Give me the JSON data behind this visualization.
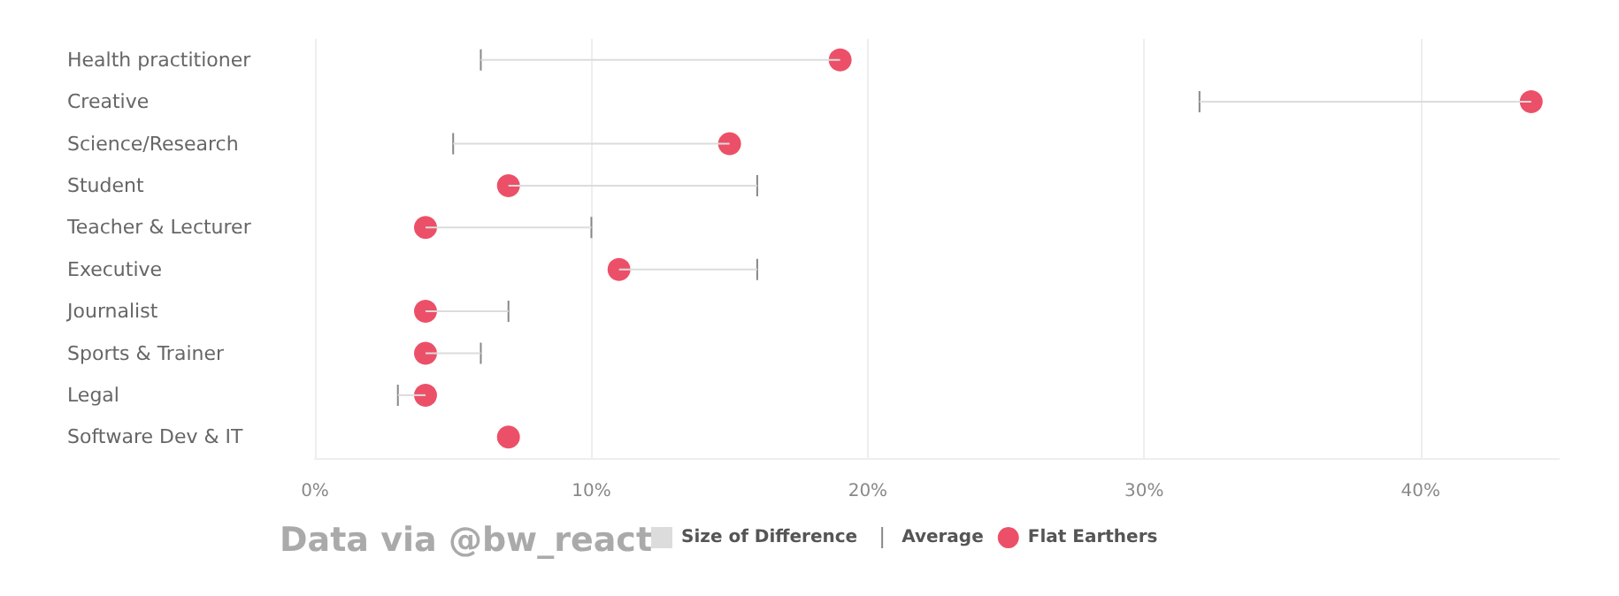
{
  "chart_data": {
    "type": "scatter",
    "orientation": "horizontal",
    "categories": [
      "Health practitioner",
      "Creative",
      "Science/Research",
      "Student",
      "Teacher & Lecturer",
      "Executive",
      "Journalist",
      "Sports & Trainer",
      "Legal",
      "Software Dev & IT"
    ],
    "series": [
      {
        "name": "Size of Difference",
        "type": "bar",
        "color": "#dcdcdc",
        "base": [
          6,
          32,
          5,
          7,
          4,
          11,
          4,
          4,
          3,
          null
        ],
        "values": [
          13,
          12,
          10,
          9,
          6,
          5,
          3,
          2,
          1,
          null
        ]
      },
      {
        "name": "Average",
        "color": "#888888",
        "values": [
          6,
          32,
          5,
          16,
          10,
          16,
          7,
          6,
          3,
          null
        ]
      },
      {
        "name": "Flat Earthers",
        "marker": "circle",
        "color": "#ec5068",
        "values": [
          19,
          44,
          15,
          7,
          4,
          11,
          4,
          4,
          4,
          7
        ]
      }
    ],
    "xlim": [
      0,
      45
    ],
    "xticks": [
      {
        "value": 0,
        "label": "0%"
      },
      {
        "value": 10,
        "label": "10%"
      },
      {
        "value": 20,
        "label": "20%"
      },
      {
        "value": 30,
        "label": "30%"
      },
      {
        "value": 40,
        "label": "40%"
      }
    ],
    "grid": "x",
    "legend": "bottom",
    "annotations": [
      "Data via @bw_react"
    ]
  }
}
